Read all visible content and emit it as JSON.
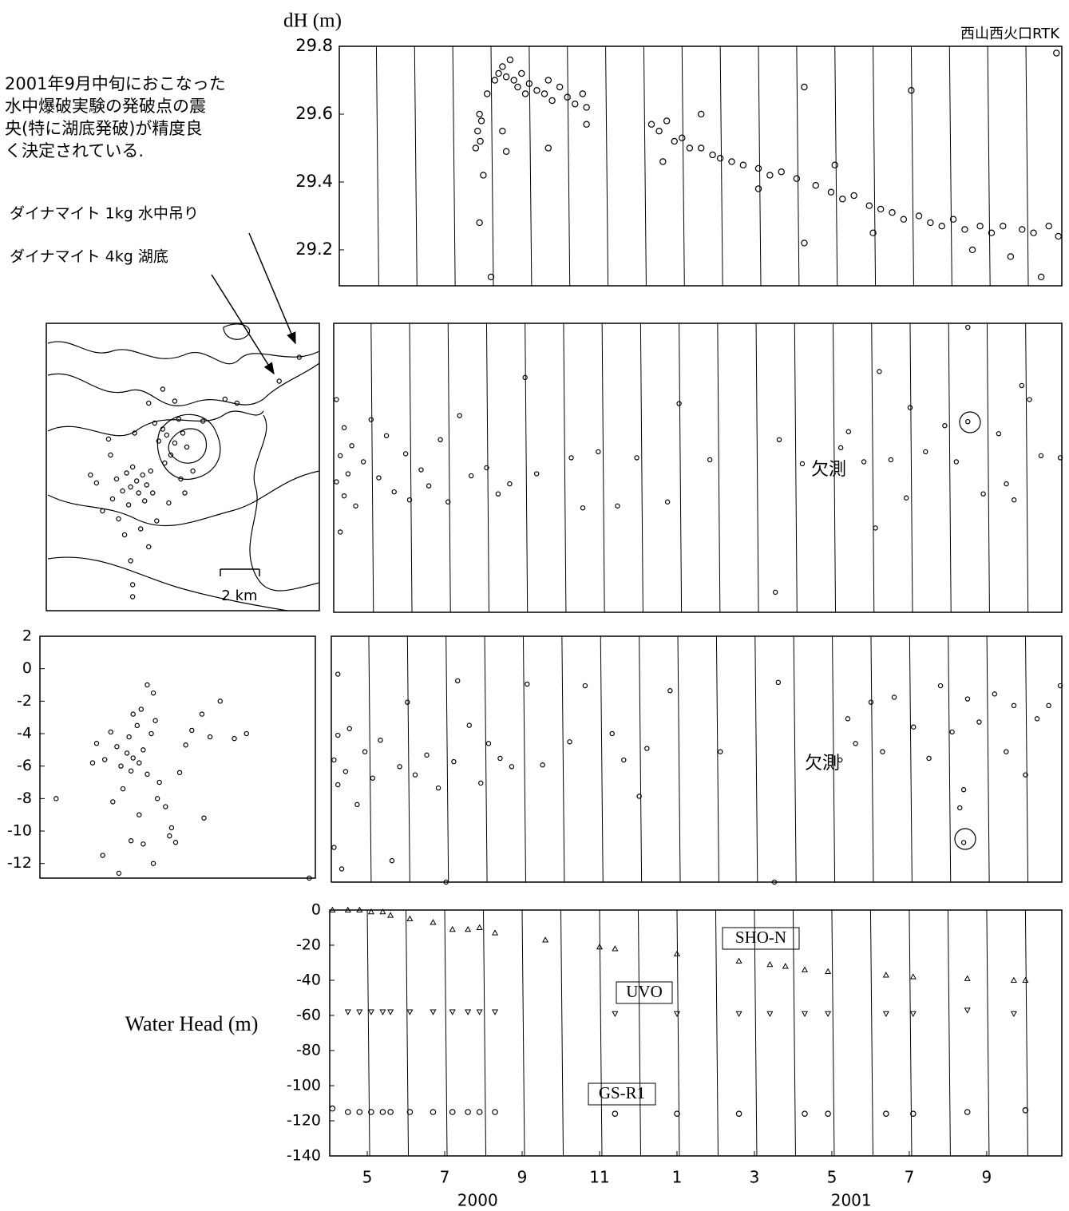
{
  "chart_data": [
    {
      "type": "scatter",
      "title": "西山西火口RTK",
      "ylabel": "dH (m)",
      "color": "#000000",
      "marker": "circle",
      "month_lines": true,
      "xlim": [
        4.03,
        22.94
      ],
      "ylim": [
        29.094,
        29.8
      ],
      "yticks": [
        29.2,
        29.4,
        29.6,
        29.8
      ],
      "x": [
        7.6,
        7.65,
        7.7,
        7.72,
        7.75,
        7.8,
        7.7,
        8.0,
        7.9,
        8.1,
        8.2,
        8.3,
        8.4,
        8.5,
        8.6,
        8.7,
        8.8,
        8.9,
        9.0,
        9.2,
        9.4,
        9.5,
        9.6,
        9.8,
        10.0,
        10.2,
        10.4,
        10.5,
        8.3,
        8.4,
        9.5,
        10.5,
        12.2,
        12.4,
        12.6,
        12.8,
        13.0,
        13.2,
        13.5,
        13.8,
        14.0,
        14.3,
        14.6,
        15.0,
        15.3,
        15.6,
        16.0,
        16.2,
        16.2,
        16.5,
        16.9,
        17.2,
        17.5,
        17.9,
        18.2,
        18.5,
        18.8,
        19.0,
        19.2,
        19.5,
        19.8,
        20.1,
        20.4,
        20.6,
        20.8,
        21.1,
        21.4,
        21.6,
        21.9,
        22.2,
        22.4,
        22.6,
        22.8,
        22.85,
        12.5,
        13.5,
        15.0,
        17.0,
        18.0
      ],
      "values": [
        29.5,
        29.55,
        29.6,
        29.52,
        29.58,
        29.42,
        29.28,
        29.12,
        29.66,
        29.7,
        29.72,
        29.74,
        29.71,
        29.76,
        29.7,
        29.68,
        29.72,
        29.66,
        29.69,
        29.67,
        29.66,
        29.7,
        29.64,
        29.68,
        29.65,
        29.63,
        29.66,
        29.62,
        29.55,
        29.49,
        29.5,
        29.57,
        29.57,
        29.55,
        29.58,
        29.52,
        29.53,
        29.5,
        29.5,
        29.48,
        29.47,
        29.46,
        29.45,
        29.44,
        29.42,
        29.43,
        29.41,
        29.68,
        29.22,
        29.39,
        29.37,
        29.35,
        29.36,
        29.33,
        29.32,
        29.31,
        29.29,
        29.67,
        29.3,
        29.28,
        29.27,
        29.29,
        29.26,
        29.2,
        29.27,
        29.25,
        29.27,
        29.18,
        29.26,
        29.25,
        29.12,
        29.27,
        29.78,
        29.24,
        29.46,
        29.6,
        29.38,
        29.45,
        29.25
      ]
    },
    {
      "type": "scatter",
      "color": "#000000",
      "marker": "circle",
      "note": [
        "2001年9月中旬におこなった",
        "水中爆破実験の発破点の震",
        "央(特に湖底発破)が精度良",
        "く決定されている."
      ],
      "arrow_labels": [
        "ダイナマイト 1kg 水中吊り",
        "ダイナマイト 4kg 湖底"
      ],
      "scale_label": "2 km",
      "xlim": [
        0,
        13.6
      ],
      "ylim": [
        0,
        14.4
      ],
      "x": [
        4.5,
        4.2,
        4.8,
        4.0,
        4.6,
        5.0,
        3.8,
        4.3,
        5.2,
        3.5,
        4.9,
        4.1,
        5.6,
        6.0,
        6.4,
        5.8,
        6.8,
        6.2,
        5.4,
        7.0,
        6.6,
        5.9,
        3.2,
        2.8,
        3.6,
        5.5,
        6.1,
        4.7,
        2.5,
        7.3,
        6.9,
        4.4,
        5.1,
        5.8,
        6.4,
        3.9,
        4.2,
        5.1,
        3.1,
        7.8,
        8.9,
        9.5,
        4.3,
        4.3,
        2.2,
        11.6,
        12.6,
        6.7,
        5.3,
        3.3
      ],
      "values": [
        6.5,
        6.2,
        6.8,
        6.9,
        5.9,
        6.3,
        6.0,
        7.2,
        7.0,
        6.6,
        5.5,
        5.3,
        8.5,
        8.8,
        8.4,
        9.1,
        8.9,
        7.8,
        9.4,
        8.2,
        9.6,
        7.4,
        7.8,
        5.0,
        4.6,
        4.5,
        5.4,
        4.1,
        6.4,
        7.0,
        5.9,
        8.9,
        10.4,
        11.1,
        10.5,
        3.8,
        2.5,
        3.2,
        8.6,
        9.5,
        10.6,
        10.4,
        0.7,
        1.3,
        6.8,
        11.5,
        12.7,
        6.6,
        5.9,
        5.6
      ]
    },
    {
      "type": "scatter",
      "color": "#000000",
      "marker": "circle",
      "month_lines": true,
      "annotation": "欠測",
      "xlim": [
        4.03,
        22.94
      ],
      "ylim": [
        0,
        14.4
      ],
      "x": [
        4.1,
        4.2,
        4.3,
        4.1,
        4.3,
        4.2,
        4.4,
        4.5,
        4.6,
        4.8,
        5.0,
        5.2,
        5.4,
        5.6,
        5.9,
        6.0,
        6.3,
        6.5,
        6.8,
        7.0,
        7.3,
        7.6,
        8.0,
        8.3,
        8.6,
        9.0,
        9.3,
        10.2,
        10.5,
        10.9,
        11.4,
        11.9,
        12.7,
        13.0,
        13.8,
        15.5,
        15.6,
        16.2,
        17.2,
        17.4,
        17.8,
        18.1,
        18.5,
        18.9,
        19.4,
        19.9,
        20.2,
        20.5,
        20.5,
        20.9,
        21.3,
        21.5,
        21.7,
        22.1,
        22.4,
        22.9,
        21.9,
        19.0,
        18.2
      ],
      "values": [
        6.5,
        7.8,
        5.8,
        10.6,
        9.2,
        4.0,
        6.9,
        8.3,
        5.3,
        7.5,
        9.6,
        6.7,
        8.8,
        6.0,
        7.9,
        5.6,
        7.1,
        6.3,
        8.6,
        5.5,
        9.8,
        6.8,
        7.2,
        5.9,
        6.4,
        11.7,
        6.9,
        7.7,
        5.2,
        8.0,
        5.3,
        7.7,
        5.5,
        10.4,
        7.6,
        1.0,
        8.6,
        7.4,
        8.2,
        9.0,
        7.5,
        4.2,
        7.6,
        5.7,
        8.0,
        9.3,
        7.5,
        9.5,
        14.2,
        5.9,
        8.9,
        6.4,
        5.6,
        10.6,
        7.8,
        7.7,
        11.3,
        10.2,
        12.0
      ]
    },
    {
      "type": "scatter",
      "color": "#000000",
      "marker": "circle",
      "xlim": [
        0,
        13.6
      ],
      "ylim": [
        -12.9,
        2.0
      ],
      "yticks": [
        2,
        0,
        -2,
        -4,
        -6,
        -8,
        -10,
        -12
      ],
      "x": [
        4.6,
        4.3,
        4.9,
        4.0,
        5.1,
        4.5,
        3.8,
        5.3,
        4.4,
        4.8,
        5.5,
        5.0,
        5.6,
        5.3,
        4.6,
        3.5,
        3.2,
        2.8,
        5.9,
        6.2,
        6.5,
        6.7,
        6.4,
        5.8,
        4.1,
        3.6,
        4.9,
        3.1,
        5.1,
        4.5,
        5.6,
        7.5,
        7.2,
        8.0,
        8.9,
        8.4,
        9.6,
        10.2,
        8.1,
        0.8,
        3.9,
        13.3,
        2.6,
        6.9,
        5.7
      ],
      "values": [
        -5.5,
        -5.2,
        -5.8,
        -6.0,
        -5.0,
        -6.3,
        -4.8,
        -6.5,
        -4.2,
        -3.5,
        -4.0,
        -2.5,
        -1.5,
        -1.0,
        -2.8,
        -3.9,
        -5.6,
        -4.6,
        -7.0,
        -8.5,
        -9.8,
        -10.7,
        -10.3,
        -8.0,
        -7.4,
        -8.2,
        -9.0,
        -11.5,
        -10.8,
        -10.6,
        -12.0,
        -3.8,
        -4.7,
        -2.8,
        -2.0,
        -4.2,
        -4.3,
        -4.0,
        -9.2,
        -8.0,
        -12.6,
        -12.9,
        -5.8,
        -6.4,
        -3.2
      ]
    },
    {
      "type": "scatter",
      "color": "#000000",
      "marker": "circle",
      "month_lines": true,
      "annotation": "欠測",
      "xlim": [
        4.03,
        22.94
      ],
      "ylim": [
        -12.9,
        2.0
      ],
      "x": [
        4.1,
        4.2,
        4.2,
        4.1,
        4.3,
        4.2,
        4.4,
        4.5,
        4.7,
        4.9,
        5.1,
        5.3,
        5.6,
        5.8,
        6.0,
        6.2,
        6.5,
        6.8,
        7.0,
        7.2,
        7.3,
        7.6,
        7.9,
        8.1,
        8.4,
        8.7,
        9.1,
        9.5,
        10.2,
        10.6,
        11.3,
        11.6,
        12.0,
        12.2,
        12.8,
        14.1,
        15.5,
        15.6,
        17.2,
        17.4,
        17.6,
        18.0,
        18.3,
        18.6,
        19.1,
        19.5,
        19.8,
        20.1,
        20.4,
        20.4,
        20.5,
        20.8,
        21.2,
        21.5,
        21.7,
        22.0,
        22.3,
        22.6,
        22.9,
        20.3
      ],
      "values": [
        -5.5,
        -4.0,
        -7.0,
        -10.8,
        -12.1,
        -0.3,
        -6.2,
        -3.6,
        -8.2,
        -5.0,
        -6.6,
        -4.3,
        -11.6,
        -5.9,
        -2.0,
        -6.4,
        -5.2,
        -7.2,
        -12.9,
        -5.6,
        -0.7,
        -3.4,
        -6.9,
        -4.5,
        -5.4,
        -5.9,
        -0.9,
        -5.8,
        -4.4,
        -1.0,
        -3.9,
        -5.5,
        -7.7,
        -4.8,
        -1.3,
        -5.0,
        -12.9,
        -0.8,
        -5.5,
        -3.0,
        -4.5,
        -2.0,
        -5.0,
        -1.7,
        -3.5,
        -5.4,
        -1.0,
        -3.8,
        -10.5,
        -7.3,
        -1.8,
        -3.2,
        -1.5,
        -5.0,
        -2.2,
        -6.4,
        -3.0,
        -2.2,
        -1.0,
        -8.4
      ]
    },
    {
      "type": "scatter",
      "ylabel": "Water Head (m)",
      "month_lines": true,
      "xlim": [
        4.03,
        22.94
      ],
      "ylim": [
        -140,
        0
      ],
      "yticks": [
        0,
        -20,
        -40,
        -60,
        -80,
        -100,
        -120,
        -140
      ],
      "xticks": [
        5,
        7,
        9,
        11,
        {
          "value": 13,
          "label": "1"
        },
        {
          "value": 15,
          "label": "3"
        },
        {
          "value": 17,
          "label": "5"
        },
        {
          "value": 19,
          "label": "7"
        },
        {
          "value": 21,
          "label": "9"
        }
      ],
      "year_labels": [
        {
          "value": 7.85,
          "label": "2000"
        },
        {
          "value": 17.5,
          "label": "2001"
        }
      ],
      "x": [
        4.1,
        4.5,
        4.8,
        5.1,
        5.4,
        5.6,
        6.1,
        6.7,
        7.2,
        7.6,
        7.9,
        8.3,
        9.6,
        11.0,
        11.4,
        13.0,
        14.6,
        15.4,
        15.8,
        16.3,
        16.9,
        18.4,
        19.1,
        20.5,
        21.7,
        22.0
      ],
      "series": [
        {
          "name": "SHO-N",
          "color": "#000000",
          "marker": "triangle",
          "values": [
            0,
            0,
            0,
            -1,
            -1,
            -3,
            -5,
            -7,
            -11,
            -11,
            -10,
            -13,
            -17,
            -21,
            -22,
            -25,
            -29,
            -31,
            -32,
            -34,
            -35,
            -37,
            -38,
            -39,
            -40,
            -40
          ]
        },
        {
          "name": "UVO",
          "color": "#000000",
          "marker": "triangle-down",
          "values": [
            null,
            -58,
            -58,
            -58,
            -58,
            -58,
            -58,
            -58,
            -58,
            -58,
            -58,
            -58,
            null,
            null,
            -59,
            -59,
            -59,
            -59,
            null,
            -59,
            -59,
            -59,
            -59,
            -57,
            -59,
            null
          ]
        },
        {
          "name": "GS-R1",
          "color": "#000000",
          "marker": "circle",
          "values": [
            -113,
            -115,
            -115,
            -115,
            -115,
            -115,
            -115,
            -115,
            -115,
            -115,
            -115,
            -115,
            null,
            null,
            -116,
            -116,
            -116,
            null,
            null,
            -116,
            -116,
            -116,
            -116,
            -115,
            null,
            -114
          ]
        }
      ]
    }
  ]
}
